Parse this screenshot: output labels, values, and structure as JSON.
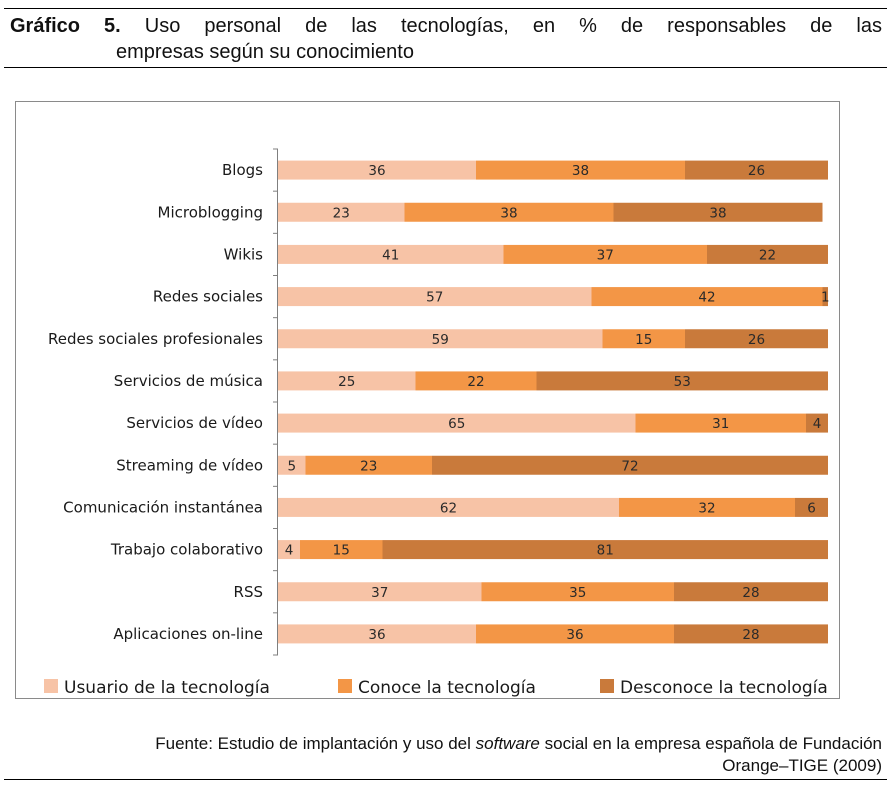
{
  "caption": {
    "label": "Gráfico 5.",
    "line1": "Uso personal de las tecnologías, en % de responsables de las",
    "line2": "empresas según su conocimiento"
  },
  "source": {
    "prefix": "Fuente: Estudio de implantación y uso del ",
    "italic": "software",
    "suffix": " social en la empresa española de Fundación",
    "line2": "Orange–TIGE (2009)"
  },
  "chart_data": {
    "type": "bar",
    "orientation": "horizontal",
    "stacked": "100%",
    "title": "Uso personal de las tecnologías, en % de responsables de las empresas según su conocimiento",
    "xlabel": "",
    "ylabel": "",
    "xlim": [
      0,
      100
    ],
    "grid": false,
    "legend_position": "bottom",
    "categories": [
      "Blogs",
      "Microblogging",
      "Wikis",
      "Redes sociales",
      "Redes sociales profesionales",
      "Servicios de música",
      "Servicios de vídeo",
      "Streaming de vídeo",
      "Comunicación instantánea",
      "Trabajo colaborativo",
      "RSS",
      "Aplicaciones on-line"
    ],
    "series": [
      {
        "name": "Usuario de la tecnología",
        "color": "#f7c3a6",
        "values": [
          36,
          23,
          41,
          57,
          59,
          25,
          65,
          5,
          62,
          4,
          37,
          36
        ]
      },
      {
        "name": "Conoce la tecnología",
        "color": "#f39646",
        "values": [
          38,
          38,
          37,
          42,
          15,
          22,
          31,
          23,
          32,
          15,
          35,
          36
        ]
      },
      {
        "name": "Desconoce la tecnología",
        "color": "#c97a3b",
        "values": [
          26,
          38,
          22,
          1,
          26,
          53,
          4,
          72,
          6,
          81,
          28,
          28
        ]
      }
    ]
  }
}
